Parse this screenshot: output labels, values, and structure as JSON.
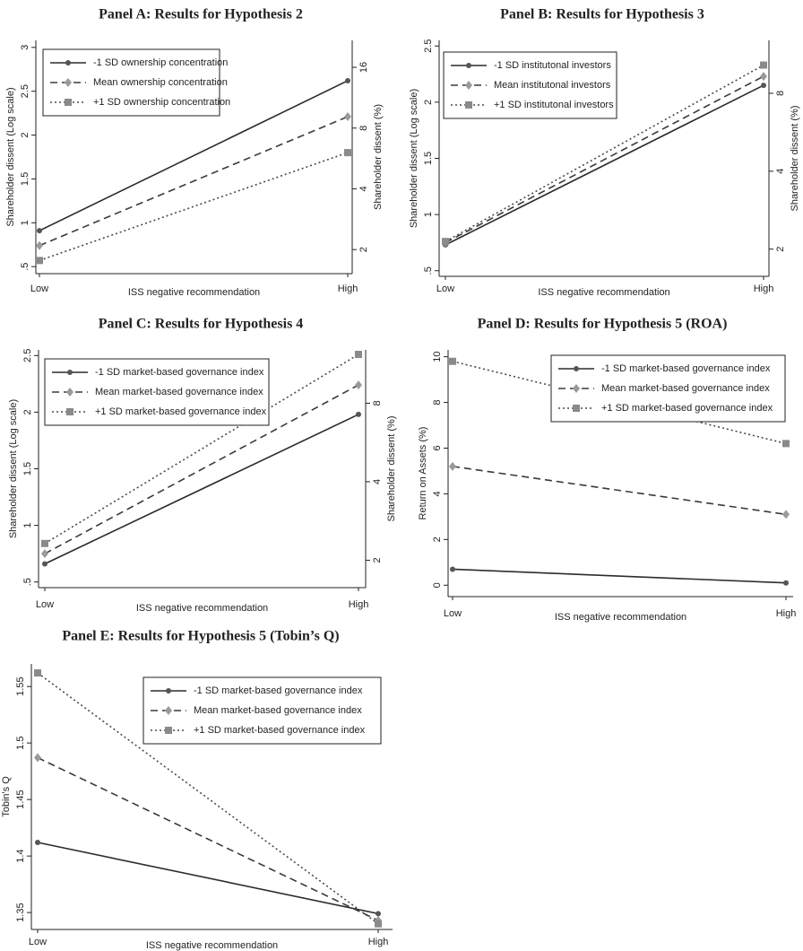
{
  "chart_data": [
    {
      "type": "line",
      "title": "Panel A: Results for Hypothesis 2",
      "categories": [
        "Low",
        "High"
      ],
      "x_label": "ISS negative recommendation",
      "y_label": "Shareholder dissent (Log scale)",
      "y2_label": "Shareholder dissent (%)",
      "ylim": [
        0.42,
        3.08
      ],
      "yticks": [
        {
          "value": 0.5,
          "label": ".5"
        },
        1,
        1.5,
        2,
        2.5,
        3
      ],
      "y2log": true,
      "y2lim": [
        1.52,
        21.76
      ],
      "y2ticks": [
        2,
        4,
        8,
        16
      ],
      "series": [
        {
          "name": "-1 SD ownership concentration",
          "color": "#2b2b2b",
          "marker_color": "#555555",
          "dash": "solid",
          "marker": "circle",
          "values": [
            0.91,
            2.62
          ]
        },
        {
          "name": "Mean ownership concentration",
          "color": "#3a3a3a",
          "marker_color": "#9a9a9a",
          "dash": "dashed",
          "marker": "diamond",
          "values": [
            0.74,
            2.21
          ]
        },
        {
          "name": "+1 SD ownership concentration",
          "color": "#4a4a4a",
          "marker_color": "#8a8a8a",
          "dash": "dotted",
          "marker": "square",
          "values": [
            0.57,
            1.8
          ]
        }
      ]
    },
    {
      "type": "line",
      "title": "Panel B: Results for Hypothesis 3",
      "categories": [
        "Low",
        "High"
      ],
      "x_label": "ISS negative recommendation",
      "y_label": "Shareholder dissent (Log scale)",
      "y2_label": "Shareholder dissent (%)",
      "ylim": [
        0.45,
        2.55
      ],
      "yticks": [
        {
          "value": 0.5,
          "label": ".5"
        },
        1,
        1.5,
        2,
        2.5
      ],
      "y2log": true,
      "y2lim": [
        1.57,
        12.81
      ],
      "y2ticks": [
        2,
        4,
        8
      ],
      "series": [
        {
          "name": "-1 SD institutonal investors",
          "color": "#2b2b2b",
          "marker_color": "#555555",
          "dash": "solid",
          "marker": "circle",
          "values": [
            0.73,
            2.15
          ]
        },
        {
          "name": "Mean institutonal investors",
          "color": "#3a3a3a",
          "marker_color": "#9a9a9a",
          "dash": "dashed",
          "marker": "diamond",
          "values": [
            0.75,
            2.23
          ]
        },
        {
          "name": "+1 SD institutonal investors",
          "color": "#4a4a4a",
          "marker_color": "#8a8a8a",
          "dash": "dotted",
          "marker": "square",
          "values": [
            0.76,
            2.33
          ]
        }
      ]
    },
    {
      "type": "line",
      "title": "Panel C: Results for Hypothesis 4",
      "categories": [
        "Low",
        "High"
      ],
      "x_label": "ISS negative recommendation",
      "y_label": "Shareholder dissent (Log scale)",
      "y2_label": "Shareholder dissent (%)",
      "ylim": [
        0.45,
        2.55
      ],
      "yticks": [
        {
          "value": 0.5,
          "label": ".5"
        },
        1,
        1.5,
        2,
        2.5
      ],
      "y2log": true,
      "y2lim": [
        1.57,
        12.81
      ],
      "y2ticks": [
        2,
        4,
        8
      ],
      "series": [
        {
          "name": "-1 SD market-based governance index",
          "color": "#2b2b2b",
          "marker_color": "#555555",
          "dash": "solid",
          "marker": "circle",
          "values": [
            0.66,
            1.98
          ]
        },
        {
          "name": "Mean market-based governance index",
          "color": "#3a3a3a",
          "marker_color": "#9a9a9a",
          "dash": "dashed",
          "marker": "diamond",
          "values": [
            0.75,
            2.24
          ]
        },
        {
          "name": "+1 SD market-based governance index",
          "color": "#4a4a4a",
          "marker_color": "#8a8a8a",
          "dash": "dotted",
          "marker": "square",
          "values": [
            0.84,
            2.51
          ]
        }
      ]
    },
    {
      "type": "line",
      "title": "Panel D: Results for Hypothesis 5 (ROA)",
      "categories": [
        "Low",
        "High"
      ],
      "x_label": "ISS negative recommendation",
      "y_label": "Return on Assets (%)",
      "ylim": [
        -0.5,
        10.3
      ],
      "yticks": [
        0,
        2,
        4,
        6,
        8,
        10
      ],
      "series": [
        {
          "name": "-1 SD market-based governance index",
          "color": "#2b2b2b",
          "marker_color": "#555555",
          "dash": "solid",
          "marker": "circle",
          "values": [
            0.7,
            0.1
          ]
        },
        {
          "name": "Mean market-based governance index",
          "color": "#3a3a3a",
          "marker_color": "#9a9a9a",
          "dash": "dashed",
          "marker": "diamond",
          "values": [
            5.2,
            3.1
          ]
        },
        {
          "name": "+1 SD market-based governance index",
          "color": "#4a4a4a",
          "marker_color": "#8a8a8a",
          "dash": "dotted",
          "marker": "square",
          "values": [
            9.8,
            6.2
          ]
        }
      ]
    },
    {
      "type": "line",
      "title": "Panel E: Results for Hypothesis 5 (Tobin’s Q)",
      "categories": [
        "Low",
        "High"
      ],
      "x_label": "ISS negative recommendation",
      "y_label": "Tobin's Q",
      "ylim": [
        1.335,
        1.57
      ],
      "yticks": [
        1.35,
        1.4,
        1.45,
        1.5,
        1.55
      ],
      "series": [
        {
          "name": "-1 SD market-based governance index",
          "color": "#2b2b2b",
          "marker_color": "#555555",
          "dash": "solid",
          "marker": "circle",
          "values": [
            1.412,
            1.349
          ]
        },
        {
          "name": "Mean market-based governance index",
          "color": "#3a3a3a",
          "marker_color": "#9a9a9a",
          "dash": "dashed",
          "marker": "diamond",
          "values": [
            1.487,
            1.343
          ]
        },
        {
          "name": "+1 SD market-based governance index",
          "color": "#4a4a4a",
          "marker_color": "#8a8a8a",
          "dash": "dotted",
          "marker": "square",
          "values": [
            1.562,
            1.34
          ]
        }
      ]
    }
  ]
}
